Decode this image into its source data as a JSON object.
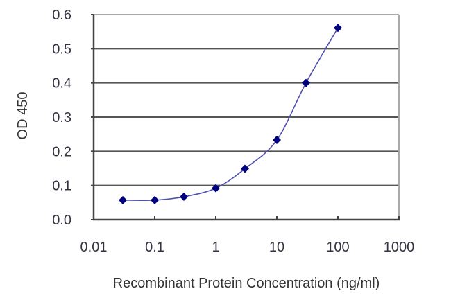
{
  "chart_data": {
    "type": "line",
    "title": "",
    "xlabel": "Recombinant Protein Concentration (ng/ml)",
    "ylabel": "OD 450",
    "x_scale": "log",
    "xlim": [
      0.01,
      1000
    ],
    "ylim": [
      0.0,
      0.6
    ],
    "x_ticks": [
      "0.01",
      "0.1",
      "1",
      "10",
      "100",
      "1000"
    ],
    "y_ticks": [
      "0.0",
      "0.1",
      "0.2",
      "0.3",
      "0.4",
      "0.5",
      "0.6"
    ],
    "grid": "horizontal",
    "legend": null,
    "series": [
      {
        "name": "OD 450",
        "x": [
          0.03,
          0.1,
          0.3,
          1,
          3,
          10,
          30,
          100
        ],
        "values": [
          0.057,
          0.057,
          0.067,
          0.092,
          0.149,
          0.233,
          0.4,
          0.561
        ],
        "line_color": "#5050b0",
        "marker_color": "#00007f",
        "marker": "diamond",
        "smooth": true
      }
    ]
  },
  "colors": {
    "gridline": "#555555",
    "frame_dark": "#444444",
    "frame_light": "#aaaaaa",
    "line": "#5050b0",
    "marker": "#00007f"
  }
}
